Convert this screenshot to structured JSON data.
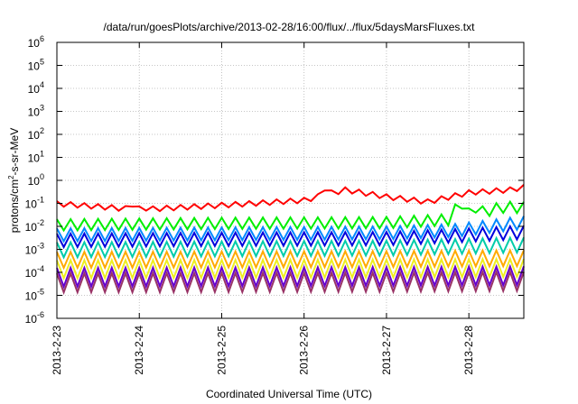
{
  "chart_data": {
    "type": "line",
    "title": "/data/run/goesPlots/archive/2013-02-28/16:00/flux/../flux/5daysMarsFluxes.txt",
    "xlabel": "Coordinated Universal Time (UTC)",
    "ylabel": {
      "base": "protons/cm",
      "sup": "2",
      "rest": "-s-sr-MeV"
    },
    "yscale": "log",
    "grid": true,
    "legend": "none",
    "x_ticks": [
      "2013-2-23",
      "2013-2-24",
      "2013-2-25",
      "2013-2-26",
      "2013-2-27",
      "2013-2-28"
    ],
    "xlim": [
      "2013-02-23T00:00",
      "2013-02-28T16:00"
    ],
    "y_ticks": [
      {
        "base": "10",
        "exp": "-6"
      },
      {
        "base": "10",
        "exp": "-5"
      },
      {
        "base": "10",
        "exp": "-4"
      },
      {
        "base": "10",
        "exp": "-3"
      },
      {
        "base": "10",
        "exp": "-2"
      },
      {
        "base": "10",
        "exp": "-1"
      },
      {
        "base": "10",
        "exp": "0"
      },
      {
        "base": "10",
        "exp": "1"
      },
      {
        "base": "10",
        "exp": "2"
      },
      {
        "base": "10",
        "exp": "3"
      },
      {
        "base": "10",
        "exp": "4"
      },
      {
        "base": "10",
        "exp": "5"
      },
      {
        "base": "10",
        "exp": "6"
      }
    ],
    "ylim": [
      1e-06,
      1000000.0
    ],
    "cycle_hours": 4,
    "series": [
      {
        "color": "#ff0000",
        "baseline": [
          [
            0,
            0.1
          ],
          [
            24,
            0.055
          ],
          [
            48,
            0.085
          ],
          [
            72,
            0.14
          ],
          [
            84,
            0.4
          ],
          [
            96,
            0.2
          ],
          [
            108,
            0.12
          ],
          [
            120,
            0.3
          ],
          [
            132,
            0.4
          ],
          [
            144,
            0.85
          ],
          [
            160,
            0.7
          ]
        ],
        "events": [
          [
            22,
            0.09
          ],
          [
            78,
            0.45
          ],
          [
            122,
            0.3
          ],
          [
            140,
            1.8
          ]
        ],
        "amp_up": 1.25,
        "amp_down": 0.75
      },
      {
        "color": "#00ee00",
        "baseline": [
          [
            0,
            0.012
          ],
          [
            48,
            0.014
          ],
          [
            96,
            0.015
          ],
          [
            114,
            0.02
          ],
          [
            130,
            0.07
          ],
          [
            160,
            0.06
          ]
        ],
        "events": [
          [
            116,
            0.09
          ],
          [
            140,
            0.14
          ]
        ],
        "amp_up": 1.7,
        "amp_down": 0.55
      },
      {
        "color": "#0088ff",
        "baseline": [
          [
            0,
            0.0045
          ],
          [
            48,
            0.005
          ],
          [
            96,
            0.0055
          ],
          [
            116,
            0.007
          ],
          [
            140,
            0.018
          ],
          [
            160,
            0.012
          ]
        ],
        "events": [],
        "amp_up": 1.8,
        "amp_down": 0.5
      },
      {
        "color": "#0000dd",
        "baseline": [
          [
            0,
            0.0025
          ],
          [
            48,
            0.0028
          ],
          [
            96,
            0.003
          ],
          [
            116,
            0.004
          ],
          [
            140,
            0.006
          ],
          [
            160,
            0.004
          ]
        ],
        "events": [],
        "amp_up": 1.9,
        "amp_down": 0.5
      },
      {
        "color": "#00ccaa",
        "baseline": [
          [
            0,
            0.001
          ],
          [
            48,
            0.0011
          ],
          [
            96,
            0.0012
          ],
          [
            116,
            0.0014
          ],
          [
            140,
            0.0017
          ],
          [
            160,
            0.0015
          ]
        ],
        "events": [],
        "amp_up": 2.0,
        "amp_down": 0.45
      },
      {
        "color": "#ffaa00",
        "baseline": [
          [
            0,
            0.00035
          ],
          [
            96,
            0.00038
          ],
          [
            140,
            0.00042
          ],
          [
            160,
            0.0004
          ]
        ],
        "events": [],
        "amp_up": 2.2,
        "amp_down": 0.45
      },
      {
        "color": "#eeee22",
        "baseline": [
          [
            0,
            0.00014
          ],
          [
            96,
            0.00015
          ],
          [
            140,
            0.00016
          ],
          [
            160,
            0.00015
          ]
        ],
        "events": [],
        "amp_up": 2.4,
        "amp_down": 0.4
      },
      {
        "color": "#6600cc",
        "baseline": [
          [
            0,
            6e-05
          ],
          [
            96,
            6.5e-05
          ],
          [
            140,
            7e-05
          ],
          [
            160,
            6.5e-05
          ]
        ],
        "events": [],
        "amp_up": 2.6,
        "amp_down": 0.4
      },
      {
        "color": "#993366",
        "baseline": [
          [
            0,
            3e-05
          ],
          [
            96,
            3.2e-05
          ],
          [
            140,
            3.5e-05
          ],
          [
            160,
            3.3e-05
          ]
        ],
        "events": [],
        "amp_up": 3.0,
        "amp_down": 0.45
      }
    ]
  }
}
